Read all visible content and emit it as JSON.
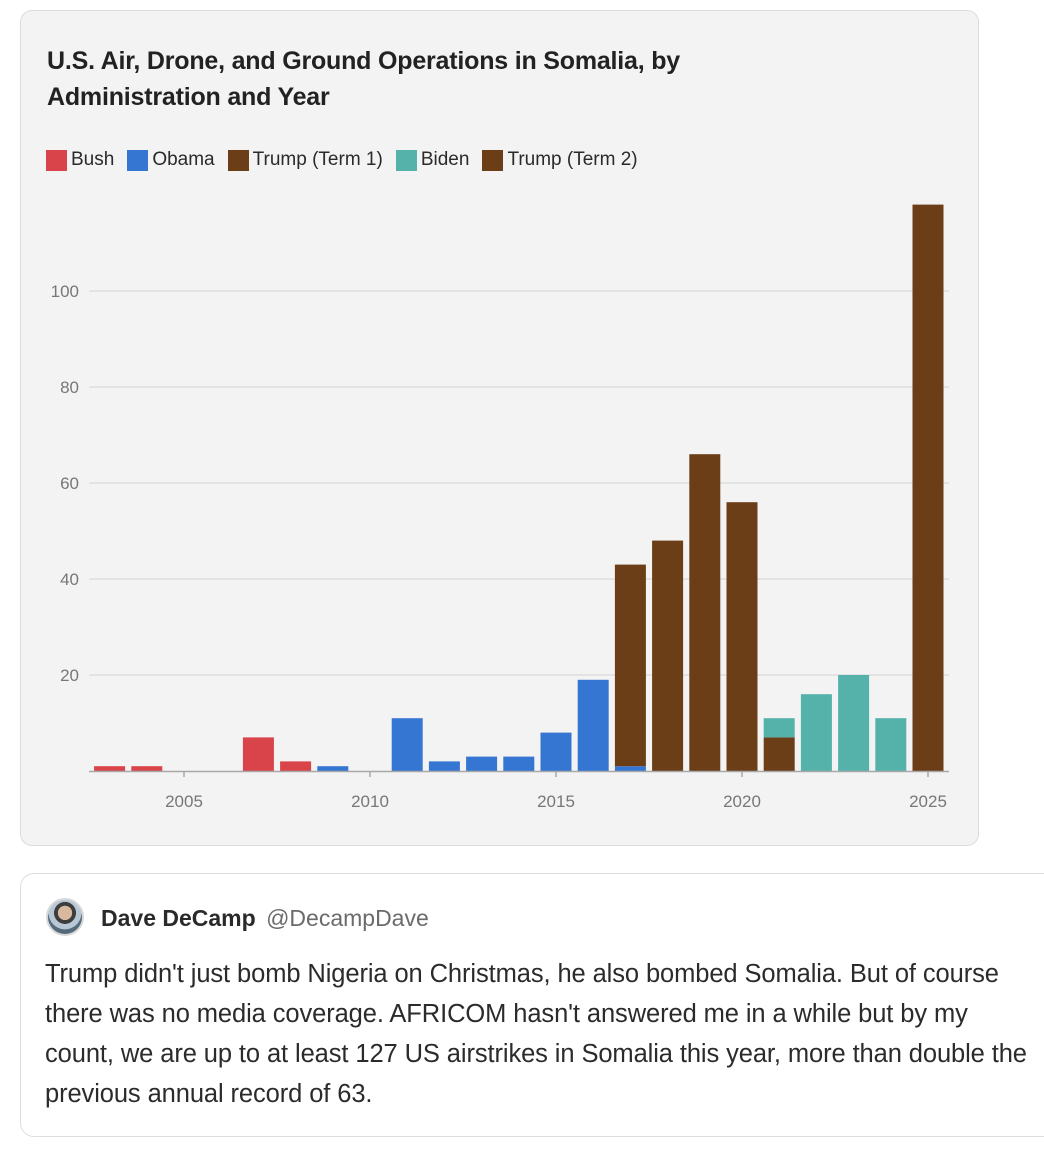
{
  "chart_data": {
    "type": "bar",
    "stacked": true,
    "title": "U.S. Air, Drone, and Ground Operations in Somalia, by Administration and Year",
    "xlabel": "",
    "ylabel": "",
    "ylim": [
      0,
      118
    ],
    "xlim": [
      2003,
      2025
    ],
    "grid": true,
    "legend_position": "top-left",
    "x_ticks": [
      "2005",
      "2010",
      "2015",
      "2020",
      "2025"
    ],
    "y_ticks": [
      "20",
      "40",
      "60",
      "80",
      "100"
    ],
    "x": [
      2003,
      2004,
      2005,
      2006,
      2007,
      2008,
      2009,
      2010,
      2011,
      2012,
      2013,
      2014,
      2015,
      2016,
      2017,
      2018,
      2019,
      2020,
      2021,
      2022,
      2023,
      2024,
      2025
    ],
    "series": [
      {
        "name": "Bush",
        "color": "#d9434a",
        "values": [
          1,
          1,
          0,
          0,
          7,
          2,
          0,
          0,
          0,
          0,
          0,
          0,
          0,
          0,
          0,
          0,
          0,
          0,
          0,
          0,
          0,
          0,
          0
        ]
      },
      {
        "name": "Obama",
        "color": "#3476d2",
        "values": [
          0,
          0,
          0,
          0,
          0,
          0,
          1,
          0,
          11,
          2,
          3,
          3,
          8,
          19,
          1,
          0,
          0,
          0,
          0,
          0,
          0,
          0,
          0
        ]
      },
      {
        "name": "Trump (Term 1)",
        "color": "#6b3e18",
        "values": [
          0,
          0,
          0,
          0,
          0,
          0,
          0,
          0,
          0,
          0,
          0,
          0,
          0,
          0,
          42,
          48,
          66,
          56,
          7,
          0,
          0,
          0,
          0
        ]
      },
      {
        "name": "Biden",
        "color": "#55b2aa",
        "values": [
          0,
          0,
          0,
          0,
          0,
          0,
          0,
          0,
          0,
          0,
          0,
          0,
          0,
          0,
          0,
          0,
          0,
          0,
          4,
          16,
          20,
          11,
          0
        ]
      },
      {
        "name": "Trump (Term 2)",
        "color": "#6b3e18",
        "values": [
          0,
          0,
          0,
          0,
          0,
          0,
          0,
          0,
          0,
          0,
          0,
          0,
          0,
          0,
          0,
          0,
          0,
          0,
          0,
          0,
          0,
          0,
          118
        ]
      }
    ]
  },
  "legend": [
    {
      "label": "Bush",
      "color": "#d9434a"
    },
    {
      "label": "Obama",
      "color": "#3476d2"
    },
    {
      "label": "Trump (Term 1)",
      "color": "#6b3e18"
    },
    {
      "label": "Biden",
      "color": "#55b2aa"
    },
    {
      "label": "Trump (Term 2)",
      "color": "#6b3e18"
    }
  ],
  "tweet": {
    "name": "Dave DeCamp",
    "handle": "@DecampDave",
    "text": "Trump didn't just bomb Nigeria on Christmas, he also bombed Somalia. But of course there was no media coverage. AFRICOM hasn't answered me in a while but by my count, we are up to at least 127 US airstrikes in Somalia this year, more than double the previous annual record of 63."
  }
}
